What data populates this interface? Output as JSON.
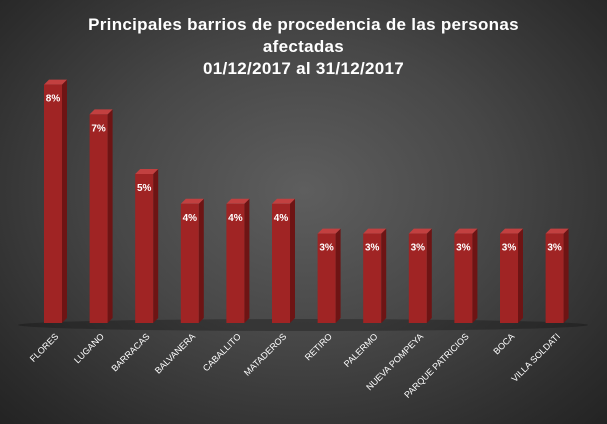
{
  "chart_data": {
    "type": "bar",
    "title": [
      "Principales barrios de procedencia de las personas",
      "afectadas",
      "01/12/2017 al 31/12/2017"
    ],
    "categories": [
      "FLORES",
      "LUGANO",
      "BARRACAS",
      "BALVANERA",
      "CABALLITO",
      "MATADEROS",
      "RETIRO",
      "PALERMO",
      "NUEVA POMPEYA",
      "PARQUE PATRICIOS",
      "BOCA",
      "VILLA SOLDATI"
    ],
    "values": [
      8,
      7,
      5,
      4,
      4,
      4,
      3,
      3,
      3,
      3,
      3,
      3
    ],
    "data_labels": [
      "8%",
      "7%",
      "5%",
      "4%",
      "4%",
      "4%",
      "3%",
      "3%",
      "3%",
      "3%",
      "3%",
      "3%"
    ],
    "value_unit": "%",
    "xlabel": "",
    "ylabel": "",
    "grid": false,
    "legend": "none",
    "colors": {
      "bar_front": "#a02424",
      "bar_side": "#6e1414",
      "bar_top": "#c24040",
      "label_text": "#ffffff"
    }
  }
}
